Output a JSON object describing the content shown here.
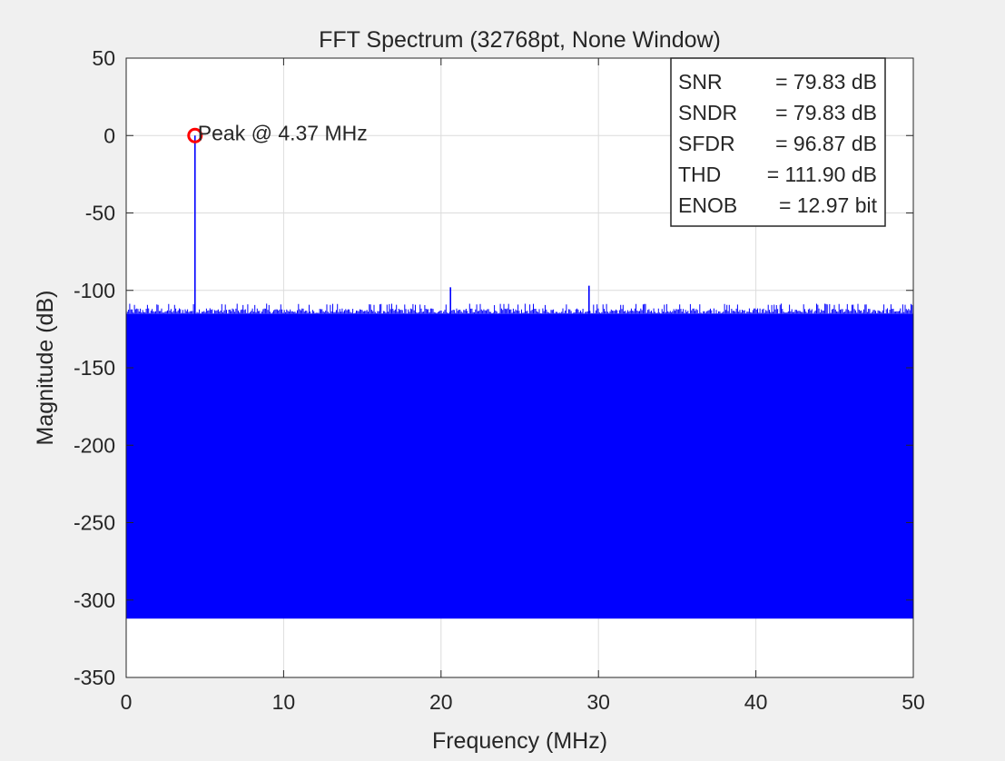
{
  "chart_data": {
    "type": "line",
    "title": "FFT Spectrum (32768pt, None Window)",
    "xlabel": "Frequency (MHz)",
    "ylabel": "Magnitude (dB)",
    "xlim": [
      0,
      50
    ],
    "ylim": [
      -350,
      50
    ],
    "x_ticks": [
      0,
      10,
      20,
      30,
      40,
      50
    ],
    "y_ticks": [
      50,
      0,
      -50,
      -100,
      -150,
      -200,
      -250,
      -300,
      -350
    ],
    "x_tick_labels": [
      "0",
      "10",
      "20",
      "30",
      "40",
      "50"
    ],
    "y_tick_labels": [
      "50",
      "0",
      "-50",
      "-100",
      "-150",
      "-200",
      "-250",
      "-300",
      "-350"
    ],
    "grid": true,
    "series": [
      {
        "color": "#0000ff",
        "noise_floor": {
          "x_range": [
            0,
            50
          ],
          "y_min": -312,
          "y_top": -115,
          "y_top_peaks": -111
        },
        "spurs": [
          {
            "x": 4.37,
            "y": 0
          },
          {
            "x": 20.6,
            "y": -98
          },
          {
            "x": 29.4,
            "y": -97
          }
        ]
      }
    ],
    "marker": {
      "x": 4.37,
      "y": 0,
      "color": "#ff0000",
      "style": "circle"
    },
    "annotation": {
      "text": "Peak @ 4.37 MHz",
      "x": 4.37,
      "y": 0
    },
    "stats_box": {
      "position": "top-right",
      "lines": [
        {
          "label": "SNR",
          "value": "= 79.83 dB"
        },
        {
          "label": "SNDR",
          "value": "= 79.83 dB"
        },
        {
          "label": "SFDR",
          "value": "= 96.87 dB"
        },
        {
          "label": "THD",
          "value": "= 111.90 dB"
        },
        {
          "label": "ENOB",
          "value": "= 12.97 bit"
        }
      ]
    }
  }
}
